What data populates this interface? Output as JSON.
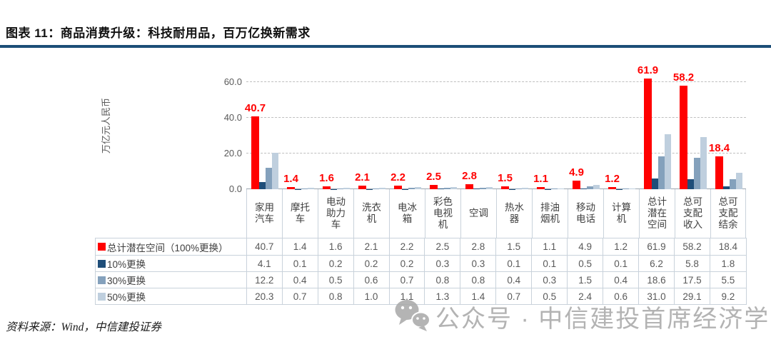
{
  "header": {
    "title": "图表 11：商品消费升级：科技耐用品，百万亿换新需求",
    "rule_color": "#1B4E77"
  },
  "chart_data": {
    "type": "bar",
    "title": "",
    "xlabel": "",
    "ylabel": "万亿元人民币",
    "ylim": [
      0,
      72
    ],
    "yticks": [
      0,
      20,
      40,
      60
    ],
    "ytick_labels": [
      "0.0",
      "20.0",
      "40.0",
      "60.0"
    ],
    "grid": "horizontal-dashed",
    "legend_position": "data-table-left",
    "data_label_color": "#FF0000",
    "categories": [
      "家用汽车",
      "摩托车",
      "电动助力车",
      "洗衣机",
      "电冰箱",
      "彩色电视机",
      "空调",
      "热水器",
      "排油烟机",
      "移动电话",
      "计算机",
      "总计潜在空间",
      "总可支配收入",
      "总可支配结余"
    ],
    "series": [
      {
        "name": "总计潜在空间（100%更换）",
        "color": "#FF0000",
        "values": [
          40.7,
          1.4,
          1.6,
          2.1,
          2.2,
          2.5,
          2.8,
          1.5,
          1.1,
          4.9,
          1.2,
          61.9,
          58.2,
          18.4
        ],
        "data_labels": true
      },
      {
        "name": "10%更换",
        "color": "#1F4E79",
        "values": [
          4.1,
          0.1,
          0.2,
          0.2,
          0.2,
          0.3,
          0.3,
          0.1,
          0.1,
          0.5,
          0.1,
          6.2,
          5.8,
          1.8
        ],
        "data_labels": false
      },
      {
        "name": "30%更换",
        "color": "#84A1BC",
        "values": [
          12.2,
          0.4,
          0.5,
          0.6,
          0.7,
          0.8,
          0.8,
          0.4,
          0.3,
          1.5,
          0.4,
          18.6,
          17.5,
          5.5
        ],
        "data_labels": false
      },
      {
        "name": "50%更换",
        "color": "#BFCFDE",
        "values": [
          20.3,
          0.7,
          0.8,
          1.0,
          1.1,
          1.3,
          1.4,
          0.7,
          0.5,
          2.4,
          0.6,
          31.0,
          29.1,
          9.2
        ],
        "data_labels": false
      }
    ]
  },
  "footer": {
    "source": "资料来源：Wind，中信建投证券"
  },
  "watermark": {
    "icon": "wechat-icon",
    "text": "公众号 · 中信建投首席经济学家",
    "color": "#A6A6A6"
  }
}
